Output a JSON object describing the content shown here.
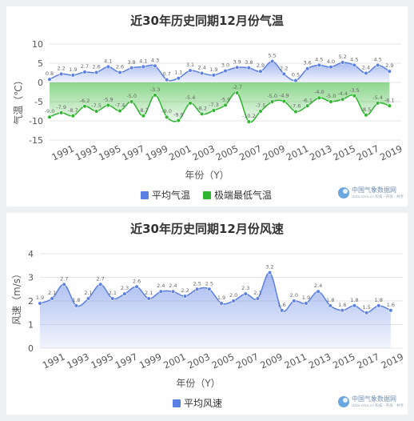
{
  "charts": [
    {
      "title": "近30年历史同期12月份气温",
      "ylabel": "气温（℃）",
      "xlabel": "年份（Y）",
      "watermark": "中国气象数据网",
      "watermark_sub": "data.cma.cn 权威 · 开放 · 共享"
    },
    {
      "title": "近30年历史同期12月份风速",
      "ylabel": "风速（m/s）",
      "xlabel": "年份（Y）",
      "watermark": "中国气象数据网",
      "watermark_sub": "data.cma.cn 权威 · 开放 · 共享"
    }
  ],
  "chart_data": [
    {
      "type": "area",
      "title": "近30年历史同期12月份气温",
      "xlabel": "年份（Y）",
      "ylabel": "气温（℃）",
      "ylim": [
        -15,
        10
      ],
      "yticks": [
        -15,
        -10,
        -5,
        0,
        5,
        10
      ],
      "grid": true,
      "legend": "bottom",
      "x": [
        1990,
        1991,
        1992,
        1993,
        1994,
        1995,
        1996,
        1997,
        1998,
        1999,
        2000,
        2001,
        2002,
        2003,
        2004,
        2005,
        2006,
        2007,
        2008,
        2009,
        2010,
        2011,
        2012,
        2013,
        2014,
        2015,
        2016,
        2017,
        2018,
        2019,
        2020
      ],
      "xticks": [
        1991,
        1993,
        1995,
        1997,
        1999,
        2001,
        2003,
        2005,
        2007,
        2009,
        2011,
        2013,
        2015,
        2017,
        2019
      ],
      "series": [
        {
          "name": "平均气温",
          "color": "#5b7fe3",
          "values": [
            0.8,
            2.2,
            1.9,
            2.7,
            2.6,
            4.1,
            2.6,
            3.8,
            4.1,
            4.3,
            0.7,
            1.1,
            3.1,
            2.4,
            1.9,
            3.0,
            3.9,
            3.8,
            2.9,
            5.5,
            2.2,
            0.5,
            3.6,
            4.5,
            4.0,
            5.2,
            4.5,
            2.4,
            4.5,
            2.9,
            null
          ]
        },
        {
          "name": "极端最低气温",
          "color": "#2fb52f",
          "values": [
            -9.0,
            -7.9,
            -8.7,
            -6.2,
            -7.5,
            -5.9,
            -7.4,
            -5.0,
            -8.7,
            -3.3,
            -9.0,
            -9.9,
            -5.4,
            -8.2,
            -7.3,
            -5.9,
            -2.7,
            -10.2,
            -7.5,
            -5.0,
            -4.9,
            -7.6,
            -6.1,
            -4.0,
            -5.0,
            -4.4,
            -3.5,
            -8.5,
            -5.4,
            -6.1,
            null
          ]
        }
      ]
    },
    {
      "type": "area",
      "title": "近30年历史同期12月份风速",
      "xlabel": "年份（Y）",
      "ylabel": "风速（m/s）",
      "ylim": [
        0,
        4
      ],
      "yticks": [
        0,
        1,
        2,
        3,
        4
      ],
      "grid": true,
      "legend": "bottom",
      "x": [
        1990,
        1991,
        1992,
        1993,
        1994,
        1995,
        1996,
        1997,
        1998,
        1999,
        2000,
        2001,
        2002,
        2003,
        2004,
        2005,
        2006,
        2007,
        2008,
        2009,
        2010,
        2011,
        2012,
        2013,
        2014,
        2015,
        2016,
        2017,
        2018,
        2019,
        2020
      ],
      "xticks": [
        1991,
        1993,
        1995,
        1997,
        1999,
        2001,
        2003,
        2005,
        2007,
        2009,
        2011,
        2013,
        2015,
        2017,
        2019
      ],
      "series": [
        {
          "name": "平均风速",
          "color": "#5b7fe3",
          "values": [
            1.9,
            2.1,
            2.7,
            1.8,
            2.1,
            2.7,
            2.1,
            2.3,
            2.6,
            2.1,
            2.4,
            2.4,
            2.2,
            2.5,
            2.5,
            1.9,
            2.0,
            2.3,
            2.1,
            3.2,
            1.6,
            2.0,
            1.9,
            2.4,
            1.8,
            1.6,
            1.8,
            1.5,
            1.8,
            1.6,
            null
          ]
        }
      ]
    }
  ]
}
